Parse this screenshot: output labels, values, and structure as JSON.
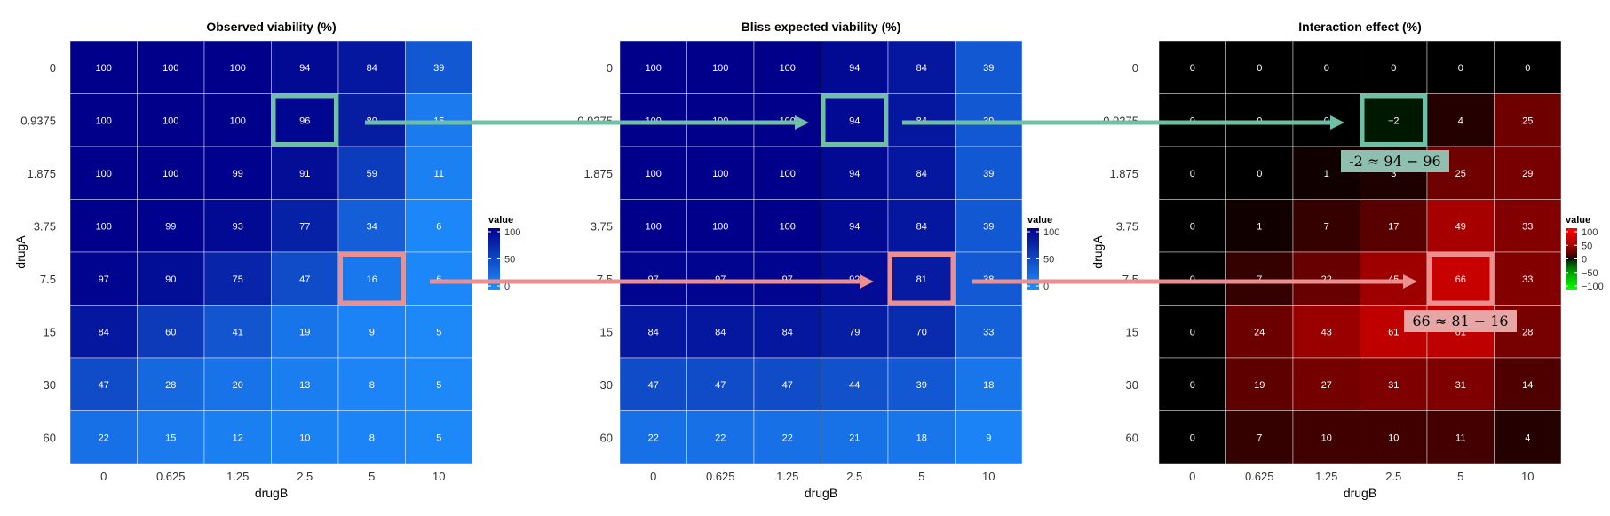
{
  "chart_data": [
    {
      "type": "heatmap",
      "title": "Observed viability (%)",
      "xlabel": "drugB",
      "ylabel": "drugA",
      "x_categories": [
        "0",
        "0.625",
        "1.25",
        "2.5",
        "5",
        "10"
      ],
      "y_categories": [
        "0",
        "0.9375",
        "1.875",
        "3.75",
        "7.5",
        "15",
        "30",
        "60"
      ],
      "values": [
        [
          100,
          100,
          100,
          94,
          84,
          39
        ],
        [
          100,
          100,
          100,
          96,
          80,
          15
        ],
        [
          100,
          100,
          99,
          91,
          59,
          11
        ],
        [
          100,
          99,
          93,
          77,
          34,
          6
        ],
        [
          97,
          90,
          75,
          47,
          16,
          6
        ],
        [
          84,
          60,
          41,
          19,
          9,
          5
        ],
        [
          47,
          28,
          20,
          13,
          8,
          5
        ],
        [
          22,
          15,
          12,
          10,
          8,
          5
        ]
      ],
      "legend": {
        "title": "value",
        "ticks": [
          "100",
          "50",
          "0"
        ],
        "range": [
          0,
          100
        ],
        "colors": [
          "#1e90ff",
          "#00008b"
        ]
      },
      "highlights": [
        {
          "row": 1,
          "col": 3,
          "color": "#6fbfa6"
        },
        {
          "row": 4,
          "col": 4,
          "color": "#ee8f8f"
        }
      ]
    },
    {
      "type": "heatmap",
      "title": "Bliss expected viability (%)",
      "xlabel": "drugB",
      "ylabel": "drugA",
      "x_categories": [
        "0",
        "0.625",
        "1.25",
        "2.5",
        "5",
        "10"
      ],
      "y_categories": [
        "0",
        "0.9375",
        "1.875",
        "3.75",
        "7.5",
        "15",
        "30",
        "60"
      ],
      "values": [
        [
          100,
          100,
          100,
          94,
          84,
          39
        ],
        [
          100,
          100,
          100,
          94,
          84,
          39
        ],
        [
          100,
          100,
          100,
          94,
          84,
          39
        ],
        [
          100,
          100,
          100,
          94,
          84,
          39
        ],
        [
          97,
          97,
          97,
          92,
          81,
          38
        ],
        [
          84,
          84,
          84,
          79,
          70,
          33
        ],
        [
          47,
          47,
          47,
          44,
          39,
          18
        ],
        [
          22,
          22,
          22,
          21,
          18,
          9
        ]
      ],
      "legend": {
        "title": "value",
        "ticks": [
          "100",
          "50",
          "0"
        ],
        "range": [
          0,
          100
        ],
        "colors": [
          "#1e90ff",
          "#00008b"
        ]
      },
      "highlights": [
        {
          "row": 1,
          "col": 3,
          "color": "#6fbfa6"
        },
        {
          "row": 4,
          "col": 4,
          "color": "#ee8f8f"
        }
      ]
    },
    {
      "type": "heatmap",
      "title": "Interaction effect (%)",
      "xlabel": "drugB",
      "ylabel": "drugA",
      "x_categories": [
        "0",
        "0.625",
        "1.25",
        "2.5",
        "5",
        "10"
      ],
      "y_categories": [
        "0",
        "0.9375",
        "1.875",
        "3.75",
        "7.5",
        "15",
        "30",
        "60"
      ],
      "values": [
        [
          0,
          0,
          0,
          0,
          0,
          0
        ],
        [
          0,
          0,
          0,
          -2,
          4,
          25
        ],
        [
          0,
          0,
          1,
          3,
          25,
          29
        ],
        [
          0,
          1,
          7,
          17,
          49,
          33
        ],
        [
          0,
          7,
          22,
          45,
          66,
          33
        ],
        [
          0,
          24,
          43,
          61,
          61,
          28
        ],
        [
          0,
          19,
          27,
          31,
          31,
          14
        ],
        [
          0,
          7,
          10,
          10,
          11,
          4
        ]
      ],
      "legend": {
        "title": "value",
        "ticks": [
          "100",
          "50",
          "0",
          "−50",
          "−100"
        ],
        "range": [
          -100,
          100
        ],
        "colors": [
          "#00ff00",
          "#000000",
          "#ff0000"
        ]
      },
      "highlights": [
        {
          "row": 1,
          "col": 3,
          "color": "#6fbfa6"
        },
        {
          "row": 4,
          "col": 4,
          "color": "#ee8f8f"
        }
      ]
    }
  ],
  "annotations": [
    {
      "text": "-2  ≈ 94  − 96",
      "color": "#8fbfae"
    },
    {
      "text": "66  ≈ 81  − 16",
      "color": "#e6a6a6"
    }
  ]
}
